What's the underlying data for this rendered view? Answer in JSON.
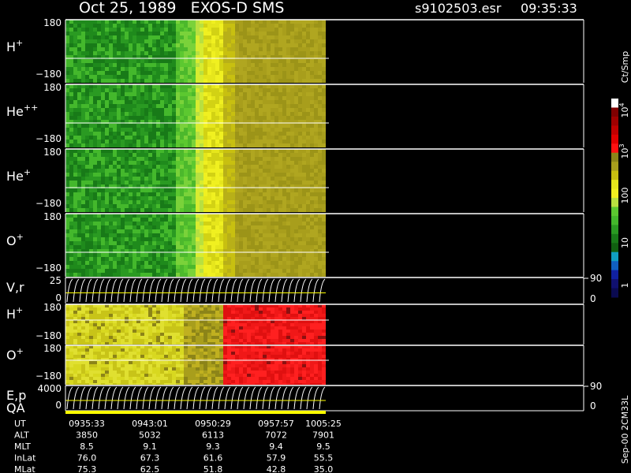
{
  "header": {
    "title": "Oct 25, 1989   EXOS-D SMS",
    "file": "s9102503.esr",
    "time": "09:35:33"
  },
  "panels": [
    {
      "label": "H",
      "sup": "+",
      "ticks": [
        "180",
        "−180"
      ]
    },
    {
      "label": "He",
      "sup": "++",
      "ticks": [
        "180",
        "−180"
      ]
    },
    {
      "label": "He",
      "sup": "+",
      "ticks": [
        "180",
        "−180"
      ]
    },
    {
      "label": "O",
      "sup": "+",
      "ticks": [
        "180",
        "−180"
      ]
    },
    {
      "label": "V,r",
      "ticks": [
        "25",
        "0"
      ],
      "right_ticks": [
        "90",
        "0"
      ]
    },
    {
      "label": "H",
      "sup": "+",
      "ticks": [
        "180",
        "−180"
      ]
    },
    {
      "label": "O",
      "sup": "+",
      "ticks": [
        "180",
        "−180"
      ]
    },
    {
      "label": "E,p",
      "label2": "QA",
      "ticks": [
        "4000",
        "0"
      ],
      "right_ticks": [
        "90",
        "0"
      ]
    }
  ],
  "colorbar": {
    "unit": "Ct/Smp",
    "ticks": [
      {
        "base": "10",
        "exp": "4"
      },
      {
        "base": "10",
        "exp": "3"
      },
      {
        "base": "100"
      },
      {
        "base": "10"
      },
      {
        "base": "1"
      }
    ]
  },
  "footer": {
    "rows": [
      {
        "label": "UT",
        "values": [
          "0935:33",
          "0943:01",
          "0950:29",
          "0957:57",
          "1005:25"
        ]
      },
      {
        "label": "ALT",
        "values": [
          "3850",
          "5032",
          "6113",
          "7072",
          "7901"
        ]
      },
      {
        "label": "MLT",
        "values": [
          "8.5",
          "9.1",
          "9.3",
          "9.4",
          "9.5"
        ]
      },
      {
        "label": "InLat",
        "values": [
          "76.0",
          "67.3",
          "61.6",
          "57.9",
          "55.5"
        ]
      },
      {
        "label": "MLat",
        "values": [
          "75.3",
          "62.5",
          "51.8",
          "42.8",
          "35.0"
        ]
      }
    ]
  },
  "code": "Sep-00 2CM33L"
}
